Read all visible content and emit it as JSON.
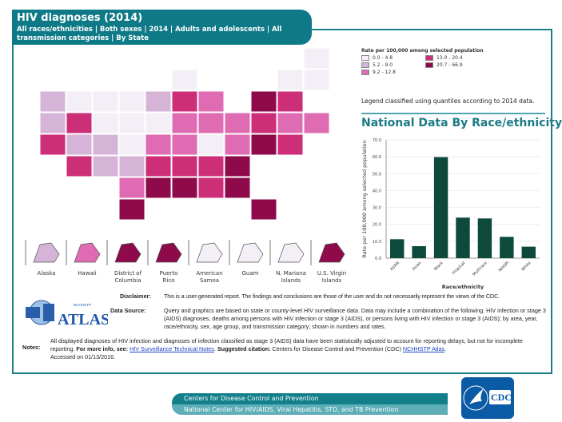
{
  "header": {
    "title": "HIV diagnoses (2014)",
    "subtitle": "All races/ethnicities | Both sexes | 2014 | Adults and adolescents | All transmission categories | By State"
  },
  "legend": {
    "title": "Rate per 100,000 among selected population",
    "items": [
      {
        "label": "0.0 - 4.8",
        "color": "#f4eff6"
      },
      {
        "label": "13.0 - 20.4",
        "color": "#cc2e77"
      },
      {
        "label": "5.2 - 9.0",
        "color": "#d6b4d8"
      },
      {
        "label": "20.7 - 66.9",
        "color": "#8e0a4a"
      },
      {
        "label": "9.2 - 12.8",
        "color": "#df6cb2"
      }
    ],
    "note": "Legend classified using quantiles according to 2014 data."
  },
  "map": {
    "states": {
      "WA": 2,
      "OR": 2,
      "CA": 4,
      "NV": 4,
      "ID": 1,
      "MT": 1,
      "WY": 1,
      "UT": 2,
      "AZ": 4,
      "CO": 2,
      "NM": 2,
      "ND": 1,
      "SD": 1,
      "NE": 1,
      "KS": 2,
      "OK": 3,
      "TX": 5,
      "MN": 2,
      "IA": 1,
      "MO": 3,
      "AR": 4,
      "LA": 5,
      "WI": 1,
      "IL": 4,
      "MI": 3,
      "IN": 3,
      "OH": 3,
      "KY": 3,
      "TN": 4,
      "MS": 5,
      "AL": 4,
      "GA": 5,
      "FL": 5,
      "SC": 5,
      "NC": 4,
      "VA": 3,
      "WV": 1,
      "PA": 3,
      "NY": 5,
      "VT": 1,
      "NH": 1,
      "ME": 1,
      "MA": 4,
      "CT": 3,
      "RI": 3,
      "NJ": 4,
      "DE": 4,
      "MD": 5
    },
    "insets": [
      {
        "label": "Alaska",
        "class": 2
      },
      {
        "label": "Hawaii",
        "class": 3
      },
      {
        "label": "District of Columbia",
        "class": 5
      },
      {
        "label": "Puerto Rico",
        "class": 5
      },
      {
        "label": "American Samoa",
        "class": 0
      },
      {
        "label": "Guam",
        "class": 0
      },
      {
        "label": "N. Mariana Islands",
        "class": 0
      },
      {
        "label": "U.S. Virgin Islands",
        "class": 5
      }
    ]
  },
  "national": {
    "title": "National Data By Race/ethnicity"
  },
  "chart_data": {
    "type": "bar",
    "categories": [
      "AI/AN",
      "Asian",
      "Black",
      "Hisp/Lat",
      "Multirace",
      "NHOPI",
      "White"
    ],
    "values": [
      11.2,
      7.1,
      59.8,
      24.0,
      23.5,
      12.6,
      6.8
    ],
    "xlabel": "Race/ethnicity",
    "ylabel": "Rate per 100,000 among selected population",
    "ylim": [
      0,
      70
    ],
    "yticks": [
      "0.0",
      "10.0",
      "20.0",
      "30.0",
      "40.0",
      "50.0",
      "60.0",
      "70.0"
    ],
    "grid": true,
    "color": "#0d4a3c"
  },
  "info": {
    "disclaimer_label": "Disclaimer:",
    "disclaimer": "This is a user-generated report. The findings and conclusions are those of the user and do not necessarily represent the views of the CDC.",
    "source_label": "Data Source:",
    "source": "Query and graphics are based on state or county-level HIV surveillance data. Data may include a combination of the following: HIV infection or stage 3 (AIDS) diagnoses, deaths among persons with HIV infection or stage 3 (AIDS), or persons living with HIV infection or stage 3 (AIDS); by area, year, race/ethnicity, sex, age group, and transmission category; shown in numbers and rates.",
    "notes_label": "Notes:",
    "notes_1": "All displayed diagnoses of HIV infection and diagnoses of infection classified as stage 3 (AIDS) data have been statistically adjusted to account for reporting delays, but not for incomplete reporting.",
    "more_info": "For more info, see:",
    "link1": "HIV Surveillance Technical Notes",
    "sep": ".",
    "citation_label": "Suggested citation:",
    "citation": "Centers for Disease Control and Prevention (CDC)",
    "link2": "NCHHSTP Atlas",
    "accessed": "Accessed on 01/13/2016."
  },
  "logo": {
    "small": "NCHHSTP",
    "big": "ATLAS"
  },
  "footer": {
    "line1": "Centers for Disease Control and Prevention",
    "line2": "National Center for HIV/AIDS, Viral Hepatitis, STD, and TB Prevention",
    "cdc": "CDC"
  }
}
